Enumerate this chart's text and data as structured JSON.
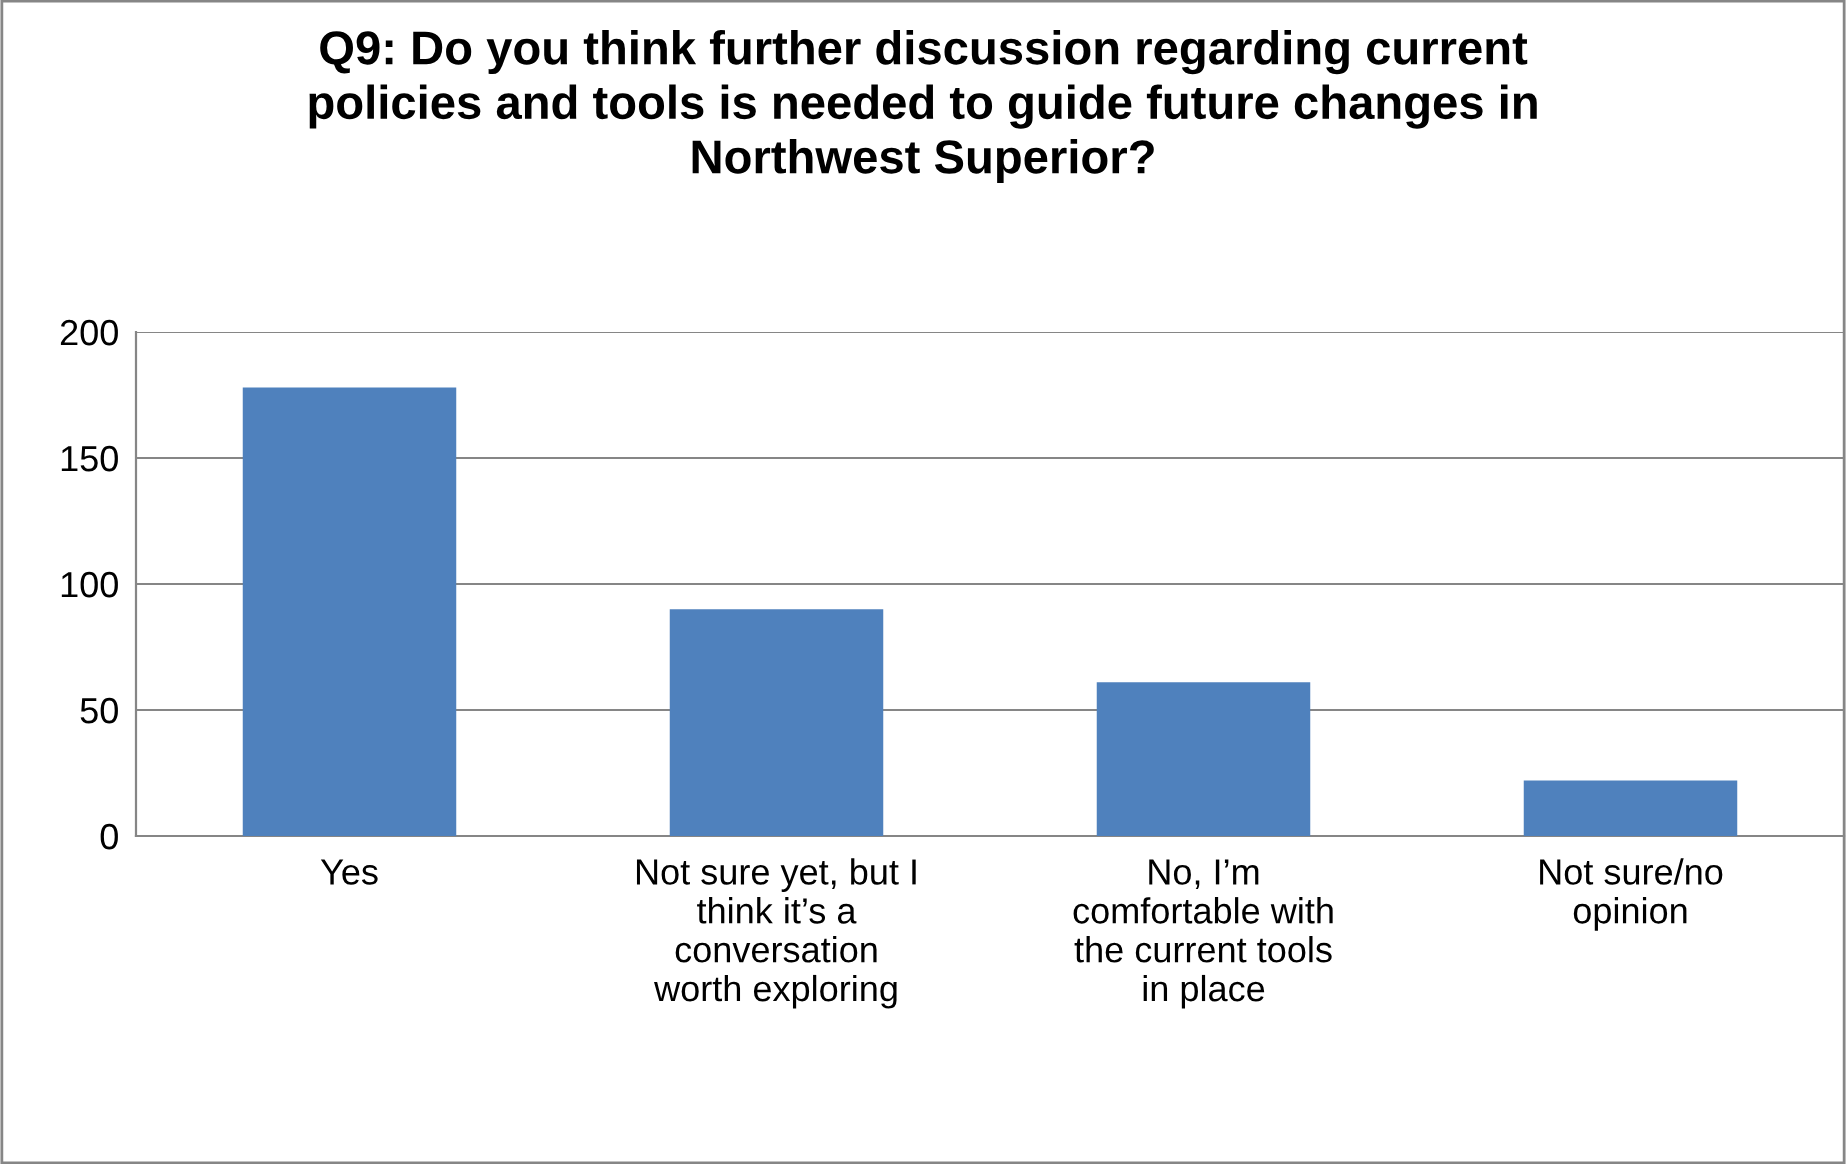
{
  "chart_data": {
    "type": "bar",
    "title": "Q9: Do you think further discussion regarding current\npolicies and tools is needed to guide future changes in\nNorthwest Superior?",
    "categories": [
      "Yes",
      "Not sure yet, but I\nthink it’s a\nconversation\nworth exploring",
      "No, I’m\ncomfortable with\nthe current tools\nin place",
      "Not sure/no\nopinion"
    ],
    "values": [
      178,
      90,
      61,
      22
    ],
    "color": "#4f81bd",
    "ylim": [
      0,
      200
    ],
    "yticks": [
      0,
      50,
      100,
      150,
      200
    ],
    "grid": "y"
  }
}
